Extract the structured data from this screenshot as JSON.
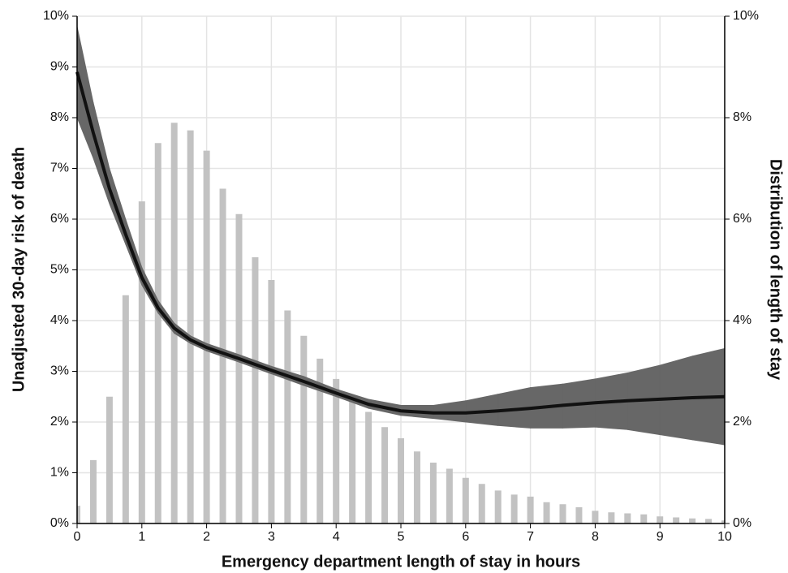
{
  "chart_data": {
    "type": "combo",
    "x_label": "Emergency department length of stay in hours",
    "y_label": "Unadjusted 30-day risk of death",
    "y2_label": "Distribution of length of stay",
    "xlim": [
      0,
      10
    ],
    "xticks": [
      0,
      1,
      2,
      3,
      4,
      5,
      6,
      7,
      8,
      9,
      10
    ],
    "ylim": [
      0,
      10
    ],
    "yticks": [
      {
        "value": 0,
        "label": "0%"
      },
      {
        "value": 1,
        "label": "1%"
      },
      {
        "value": 2,
        "label": "2%"
      },
      {
        "value": 3,
        "label": "3%"
      },
      {
        "value": 4,
        "label": "4%"
      },
      {
        "value": 5,
        "label": "5%"
      },
      {
        "value": 6,
        "label": "6%"
      },
      {
        "value": 7,
        "label": "7%"
      },
      {
        "value": 8,
        "label": "8%"
      },
      {
        "value": 9,
        "label": "9%"
      },
      {
        "value": 10,
        "label": "10%"
      }
    ],
    "y2lim": [
      0,
      10
    ],
    "y2ticks": [
      {
        "value": 0,
        "label": "0%"
      },
      {
        "value": 2,
        "label": "2%"
      },
      {
        "value": 4,
        "label": "4%"
      },
      {
        "value": 6,
        "label": "6%"
      },
      {
        "value": 8,
        "label": "8%"
      },
      {
        "value": 10,
        "label": "10%"
      }
    ],
    "grid": true,
    "series": [
      {
        "type": "bar",
        "axis": "y2",
        "color": "#c2c2c2",
        "x": [
          0,
          0.25,
          0.5,
          0.75,
          1,
          1.25,
          1.5,
          1.75,
          2,
          2.25,
          2.5,
          2.75,
          3,
          3.25,
          3.5,
          3.75,
          4,
          4.25,
          4.5,
          4.75,
          5,
          5.25,
          5.5,
          5.75,
          6,
          6.25,
          6.5,
          6.75,
          7,
          7.25,
          7.5,
          7.75,
          8,
          8.25,
          8.5,
          8.75,
          9,
          9.25,
          9.5,
          9.75,
          10
        ],
        "values": [
          0.35,
          1.25,
          2.5,
          4.5,
          6.35,
          7.5,
          7.9,
          7.75,
          7.35,
          6.6,
          6.1,
          5.25,
          4.8,
          4.2,
          3.7,
          3.25,
          2.85,
          2.5,
          2.2,
          1.9,
          1.68,
          1.42,
          1.2,
          1.08,
          0.9,
          0.78,
          0.65,
          0.57,
          0.53,
          0.42,
          0.38,
          0.32,
          0.25,
          0.22,
          0.2,
          0.18,
          0.14,
          0.12,
          0.1,
          0.09,
          0.06
        ]
      },
      {
        "type": "line",
        "axis": "y",
        "color": "#111111",
        "band_color": "#676767",
        "x": [
          0,
          0.25,
          0.5,
          0.75,
          1,
          1.25,
          1.5,
          1.75,
          2,
          2.5,
          3,
          3.5,
          4,
          4.5,
          5,
          5.5,
          6,
          6.5,
          7,
          7.5,
          8,
          8.5,
          9,
          9.5,
          10
        ],
        "values": [
          8.9,
          7.7,
          6.6,
          5.7,
          4.85,
          4.25,
          3.85,
          3.62,
          3.47,
          3.25,
          3.02,
          2.8,
          2.57,
          2.35,
          2.22,
          2.18,
          2.18,
          2.22,
          2.27,
          2.33,
          2.38,
          2.42,
          2.45,
          2.48,
          2.5
        ],
        "lower": [
          8.0,
          7.2,
          6.3,
          5.5,
          4.7,
          4.15,
          3.75,
          3.55,
          3.4,
          3.18,
          2.95,
          2.72,
          2.5,
          2.27,
          2.13,
          2.07,
          2.0,
          1.93,
          1.88,
          1.88,
          1.9,
          1.85,
          1.75,
          1.65,
          1.55
        ],
        "upper": [
          9.8,
          8.3,
          7.0,
          6.0,
          5.05,
          4.4,
          3.95,
          3.7,
          3.55,
          3.33,
          3.1,
          2.9,
          2.65,
          2.45,
          2.33,
          2.33,
          2.42,
          2.55,
          2.68,
          2.75,
          2.85,
          2.97,
          3.12,
          3.3,
          3.45
        ]
      }
    ]
  }
}
